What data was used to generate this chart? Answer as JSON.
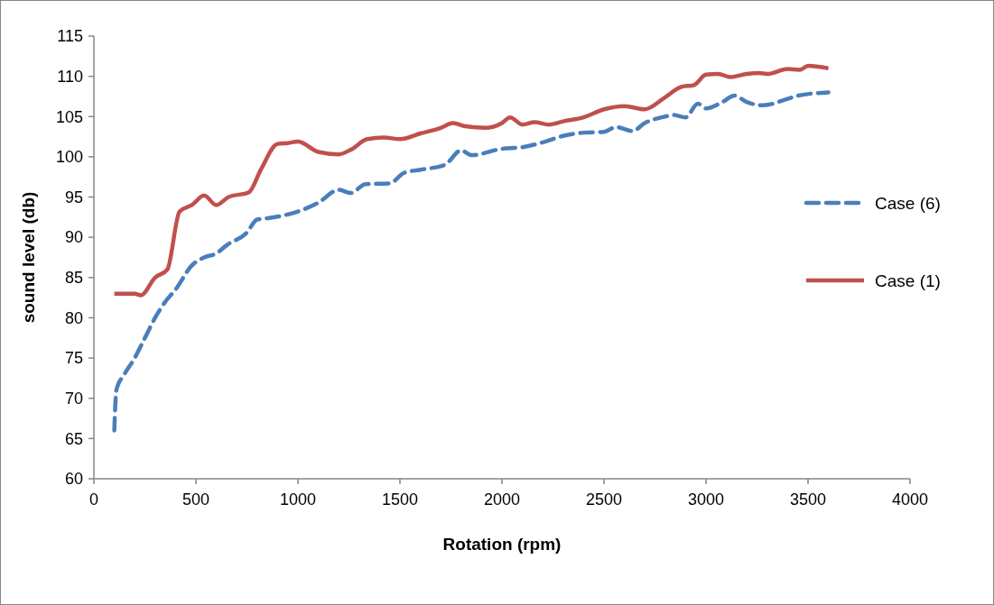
{
  "chart_data": {
    "type": "line",
    "xlabel": "Rotation (rpm)",
    "ylabel": "sound level (db)",
    "xlim": [
      0,
      4000
    ],
    "xticks": [
      0,
      500,
      1000,
      1500,
      2000,
      2500,
      3000,
      3500,
      4000
    ],
    "ylim": [
      60,
      115
    ],
    "yticks": [
      60,
      65,
      70,
      75,
      80,
      85,
      90,
      95,
      100,
      105,
      110,
      115
    ],
    "legend": "right",
    "grid": false,
    "marker": "none",
    "series": [
      {
        "name": "Case (6)",
        "color": "#4a7ebb",
        "line_style": "dashed",
        "x": [
          100,
          110,
          150,
          200,
          250,
          300,
          350,
          400,
          480,
          540,
          600,
          650,
          750,
          800,
          860,
          1000,
          1100,
          1200,
          1260,
          1330,
          1450,
          1520,
          1600,
          1720,
          1800,
          1850,
          2000,
          2100,
          2200,
          2300,
          2400,
          2500,
          2560,
          2640,
          2700,
          2800,
          2840,
          2900,
          2960,
          3000,
          3080,
          3140,
          3200,
          3280,
          3400,
          3450,
          3600
        ],
        "values": [
          66,
          71,
          73,
          75,
          77.5,
          80,
          82,
          83.5,
          86.5,
          87.5,
          88,
          89,
          90.6,
          92.2,
          92.4,
          93.2,
          94.3,
          95.9,
          95.5,
          96.6,
          96.7,
          98,
          98.4,
          99,
          100.8,
          100.2,
          101,
          101.2,
          101.8,
          102.6,
          103,
          103.1,
          103.7,
          103.2,
          104.2,
          105,
          105.2,
          104.9,
          106.6,
          106,
          106.8,
          107.6,
          106.8,
          106.4,
          107.2,
          107.6,
          108
        ]
      },
      {
        "name": "Case (1)",
        "color": "#c0504d",
        "line_style": "solid",
        "x": [
          100,
          200,
          230,
          300,
          360,
          420,
          480,
          540,
          600,
          660,
          760,
          820,
          900,
          950,
          1000,
          1100,
          1200,
          1260,
          1340,
          1420,
          1500,
          1600,
          1700,
          1760,
          1820,
          1920,
          2000,
          2040,
          2100,
          2160,
          2230,
          2300,
          2400,
          2500,
          2600,
          2700,
          2800,
          2880,
          2940,
          3000,
          3060,
          3120,
          3200,
          3260,
          3300,
          3400,
          3460,
          3500,
          3600
        ],
        "values": [
          83,
          83,
          82.8,
          85,
          86,
          93.2,
          94,
          95.2,
          94,
          95,
          95.6,
          98.5,
          101.6,
          101.7,
          101.9,
          100.6,
          100.3,
          100.9,
          102.2,
          102.4,
          102.2,
          102.9,
          103.6,
          104.2,
          103.8,
          103.6,
          104.2,
          104.9,
          104,
          104.3,
          104,
          104.4,
          104.9,
          105.9,
          106.3,
          105.9,
          107.4,
          108.7,
          108.9,
          110.2,
          110.3,
          109.9,
          110.3,
          110.4,
          110.3,
          110.9,
          110.8,
          111.3,
          111
        ]
      }
    ]
  }
}
